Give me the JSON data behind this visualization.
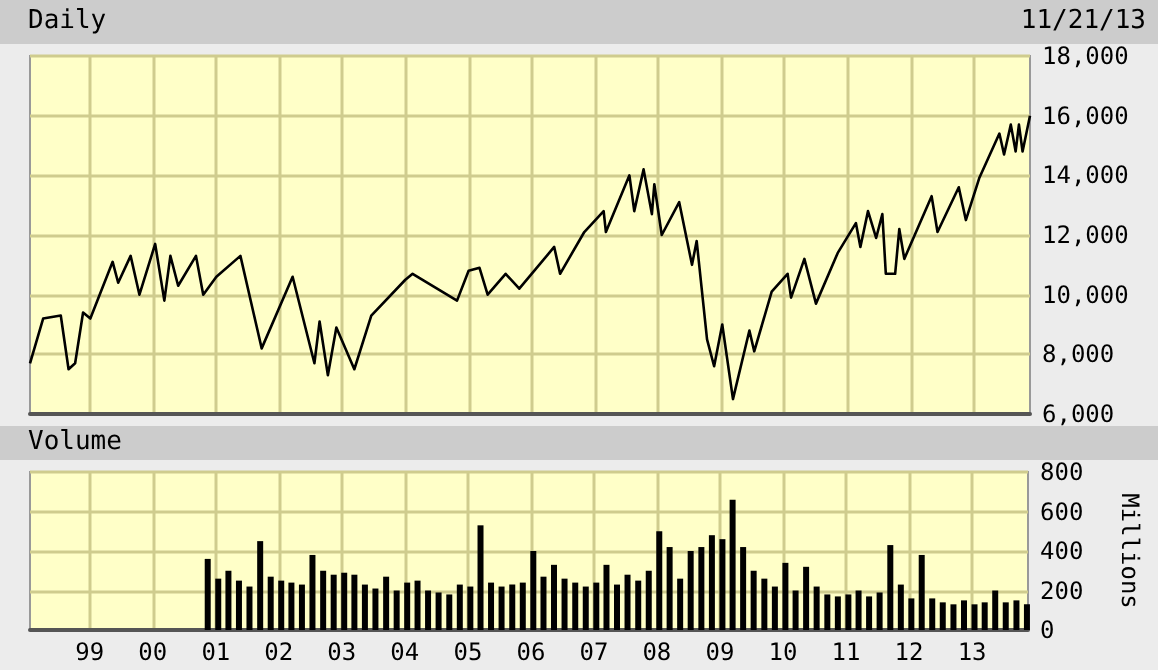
{
  "chart_data": [
    {
      "type": "line",
      "title": "Daily",
      "annotations": [
        "11/21/13"
      ],
      "color": "#000000",
      "marker": "none",
      "grid": true,
      "tick_labels": "y",
      "x": [
        "1998-01-20",
        "1998-04-06",
        "1998-07-17",
        "1998-08-31",
        "1998-10-08",
        "1998-11-23",
        "1999-01-04",
        "1999-05-13",
        "1999-06-14",
        "1999-08-25",
        "1999-10-15",
        "2000-01-14",
        "2000-03-07",
        "2000-04-11",
        "2000-05-26",
        "2000-09-06",
        "2000-10-18",
        "2001-01-02",
        "2001-05-21",
        "2001-09-21",
        "2002-03-19",
        "2002-07-23",
        "2002-08-22",
        "2002-10-09",
        "2002-11-27",
        "2003-03-11",
        "2003-06-17",
        "2003-12-31",
        "2004-02-11",
        "2004-10-25",
        "2004-12-31",
        "2005-03-04",
        "2005-04-20",
        "2005-08-02",
        "2005-10-20",
        "2006-05-10",
        "2006-06-13",
        "2006-10-31",
        "2007-02-20",
        "2007-03-05",
        "2007-07-19",
        "2007-08-16",
        "2007-10-09",
        "2007-11-26",
        "2007-12-10",
        "2008-01-22",
        "2008-05-02",
        "2008-07-15",
        "2008-08-11",
        "2008-10-10",
        "2008-11-20",
        "2009-01-06",
        "2009-03-09",
        "2009-06-12",
        "2009-07-10",
        "2009-10-19",
        "2010-01-19",
        "2010-02-08",
        "2010-04-26",
        "2010-07-02",
        "2010-11-05",
        "2011-02-18",
        "2011-03-16",
        "2011-04-29",
        "2011-06-15",
        "2011-07-21",
        "2011-08-10",
        "2011-10-03",
        "2011-10-27",
        "2011-11-25",
        "2012-05-01",
        "2012-06-04",
        "2012-10-05",
        "2012-11-15",
        "2013-01-31",
        "2013-05-28",
        "2013-06-24",
        "2013-08-02",
        "2013-08-30",
        "2013-09-18",
        "2013-10-09",
        "2013-11-21"
      ],
      "values": [
        7700,
        9200,
        9300,
        7500,
        7700,
        9400,
        9200,
        11100,
        10400,
        11300,
        10000,
        11700,
        9800,
        11300,
        10300,
        11300,
        10000,
        10600,
        11300,
        8200,
        10600,
        7700,
        9100,
        7300,
        8900,
        7500,
        9300,
        10500,
        10700,
        9800,
        10800,
        10900,
        10000,
        10700,
        10200,
        11600,
        10700,
        12100,
        12800,
        12100,
        14000,
        12800,
        14200,
        12700,
        13700,
        12000,
        13100,
        11000,
        11800,
        8500,
        7600,
        9000,
        6500,
        8800,
        8100,
        10100,
        10700,
        9900,
        11200,
        9700,
        11400,
        12400,
        11600,
        12800,
        11900,
        12700,
        10700,
        10700,
        12200,
        11200,
        13300,
        12100,
        13600,
        12500,
        13900,
        15400,
        14700,
        15700,
        14800,
        15700,
        14800,
        16000
      ],
      "xlim": [
        "1998-01-20",
        "2013-11-21"
      ],
      "xticks": [
        {
          "value": "1999-01-01",
          "label": null
        },
        {
          "value": "2000-01-01",
          "label": null
        },
        {
          "value": "2001-01-01",
          "label": null
        },
        {
          "value": "2002-01-01",
          "label": null
        },
        {
          "value": "2003-01-01",
          "label": null
        },
        {
          "value": "2004-01-01",
          "label": null
        },
        {
          "value": "2005-01-01",
          "label": null
        },
        {
          "value": "2006-01-01",
          "label": null
        },
        {
          "value": "2007-01-01",
          "label": null
        },
        {
          "value": "2008-01-01",
          "label": null
        },
        {
          "value": "2009-01-01",
          "label": null
        },
        {
          "value": "2010-01-01",
          "label": null
        },
        {
          "value": "2011-01-01",
          "label": null
        },
        {
          "value": "2012-01-01",
          "label": null
        },
        {
          "value": "2013-01-01",
          "label": null
        }
      ],
      "ylim": [
        6000,
        18000
      ],
      "yticks": [
        {
          "value": 6000,
          "label": "6,000"
        },
        {
          "value": 8000,
          "label": "8,000"
        },
        {
          "value": 10000,
          "label": "10,000"
        },
        {
          "value": 12000,
          "label": "12,000"
        },
        {
          "value": 14000,
          "label": "14,000"
        },
        {
          "value": 16000,
          "label": "16,000"
        },
        {
          "value": 18000,
          "label": "18,000"
        }
      ]
    },
    {
      "type": "bar",
      "title": "Volume",
      "ylabel": "Millions",
      "color": "#000000",
      "grid": true,
      "x": [
        "2000-11-15",
        "2001-01-15",
        "2001-03-15",
        "2001-05-15",
        "2001-07-15",
        "2001-09-15",
        "2001-11-15",
        "2002-01-15",
        "2002-03-15",
        "2002-05-15",
        "2002-07-15",
        "2002-09-15",
        "2002-11-15",
        "2003-01-15",
        "2003-03-15",
        "2003-05-15",
        "2003-07-15",
        "2003-09-15",
        "2003-11-15",
        "2004-01-15",
        "2004-03-15",
        "2004-05-15",
        "2004-07-15",
        "2004-09-15",
        "2004-11-15",
        "2005-01-15",
        "2005-03-15",
        "2005-05-15",
        "2005-07-15",
        "2005-09-15",
        "2005-11-15",
        "2006-01-15",
        "2006-03-15",
        "2006-05-15",
        "2006-07-15",
        "2006-09-15",
        "2006-11-15",
        "2007-01-15",
        "2007-03-15",
        "2007-05-15",
        "2007-07-15",
        "2007-09-15",
        "2007-11-15",
        "2008-01-15",
        "2008-03-15",
        "2008-05-15",
        "2008-07-15",
        "2008-09-15",
        "2008-11-15",
        "2009-01-15",
        "2009-03-15",
        "2009-05-15",
        "2009-07-15",
        "2009-09-15",
        "2009-11-15",
        "2010-01-15",
        "2010-03-15",
        "2010-05-15",
        "2010-07-15",
        "2010-09-15",
        "2010-11-15",
        "2011-01-15",
        "2011-03-15",
        "2011-05-15",
        "2011-07-15",
        "2011-09-15",
        "2011-11-15",
        "2012-01-15",
        "2012-03-15",
        "2012-05-15",
        "2012-07-15",
        "2012-09-15",
        "2012-11-15",
        "2013-01-15",
        "2013-03-15",
        "2013-05-15",
        "2013-07-15",
        "2013-09-15",
        "2013-11-15"
      ],
      "values": [
        360,
        260,
        300,
        250,
        220,
        450,
        270,
        250,
        240,
        230,
        380,
        300,
        280,
        290,
        280,
        230,
        210,
        270,
        200,
        240,
        250,
        200,
        190,
        180,
        230,
        220,
        530,
        240,
        220,
        230,
        240,
        400,
        270,
        330,
        260,
        240,
        220,
        240,
        330,
        230,
        280,
        250,
        300,
        500,
        420,
        260,
        400,
        420,
        480,
        460,
        660,
        420,
        300,
        260,
        220,
        340,
        200,
        320,
        220,
        180,
        170,
        180,
        200,
        170,
        190,
        430,
        230,
        160,
        380,
        160,
        140,
        130,
        150,
        130,
        140,
        200,
        140,
        150,
        130
      ],
      "xlim": [
        "1998-01-20",
        "2013-11-21"
      ],
      "xticks": [
        {
          "value": "1999-01-01",
          "label": "99"
        },
        {
          "value": "2000-01-01",
          "label": "00"
        },
        {
          "value": "2001-01-01",
          "label": "01"
        },
        {
          "value": "2002-01-01",
          "label": "02"
        },
        {
          "value": "2003-01-01",
          "label": "03"
        },
        {
          "value": "2004-01-01",
          "label": "04"
        },
        {
          "value": "2005-01-01",
          "label": "05"
        },
        {
          "value": "2006-01-01",
          "label": "06"
        },
        {
          "value": "2007-01-01",
          "label": "07"
        },
        {
          "value": "2008-01-01",
          "label": "08"
        },
        {
          "value": "2009-01-01",
          "label": "09"
        },
        {
          "value": "2010-01-01",
          "label": "10"
        },
        {
          "value": "2011-01-01",
          "label": "11"
        },
        {
          "value": "2012-01-01",
          "label": "12"
        },
        {
          "value": "2013-01-01",
          "label": "13"
        }
      ],
      "ylim": [
        0,
        800
      ],
      "yticks": [
        0,
        200,
        400,
        600,
        800
      ]
    }
  ]
}
